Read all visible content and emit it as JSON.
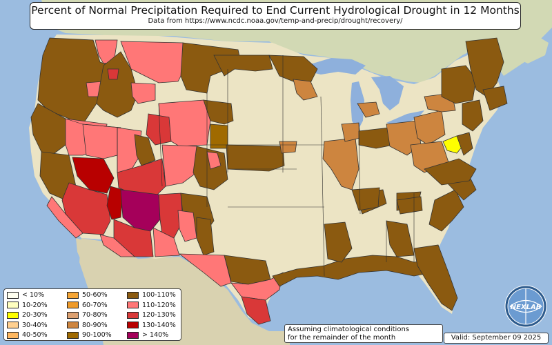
{
  "title": "Percent of Normal Precipitation Required to End Current Hydrological Drought in 12 Months",
  "subtitle": "Data from https://www.ncdc.noaa.gov/temp-and-precip/drought/recovery/",
  "legend": [
    {
      "label": "< 10%",
      "color": "#fffff0"
    },
    {
      "label": "10-20%",
      "color": "#ffffc0"
    },
    {
      "label": "20-30%",
      "color": "#ffff00"
    },
    {
      "label": "30-40%",
      "color": "#ffd090"
    },
    {
      "label": "40-50%",
      "color": "#ffb860"
    },
    {
      "label": "50-60%",
      "color": "#f5a535"
    },
    {
      "label": "60-70%",
      "color": "#ee9a2a"
    },
    {
      "label": "70-80%",
      "color": "#dca070"
    },
    {
      "label": "80-90%",
      "color": "#cd853f"
    },
    {
      "label": "90-100%",
      "color": "#a06a00"
    },
    {
      "label": "100-110%",
      "color": "#8b5a10"
    },
    {
      "label": "110-120%",
      "color": "#ff7777"
    },
    {
      "label": "120-130%",
      "color": "#d93838"
    },
    {
      "label": "130-140%",
      "color": "#b80000"
    },
    {
      "label": "> 140%",
      "color": "#a5005a"
    }
  ],
  "note": {
    "line1": "Assuming climatological conditions",
    "line2": "for the remainder of the month"
  },
  "valid": "Valid: September 09 2025",
  "logo_text": "NEXLAB",
  "colors": {
    "ocean": "#9bbce0",
    "land": "#ece4c4",
    "canada": "#d2d9b4",
    "mexico": "#d9d2b0",
    "lake": "#8eb0dc",
    "state_border": "#333333"
  }
}
